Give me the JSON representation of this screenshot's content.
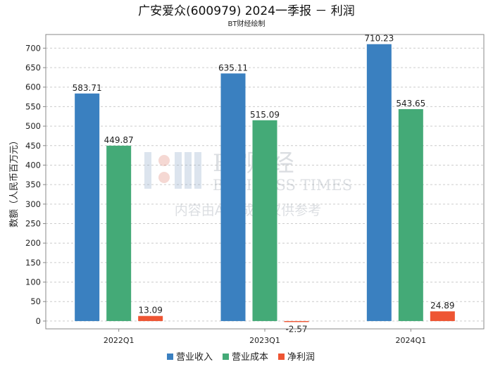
{
  "chart_data": {
    "type": "bar",
    "title": "广安爱众(600979) 2024一季报 － 利润",
    "subtitle": "BT财经绘制",
    "xlabel": "",
    "ylabel": "数额（人民币百万元）",
    "categories": [
      "2022Q1",
      "2023Q1",
      "2024Q1"
    ],
    "series": [
      {
        "name": "营业收入",
        "values": [
          583.71,
          635.11,
          710.23
        ],
        "color": "#3a80c0"
      },
      {
        "name": "营业成本",
        "values": [
          449.87,
          515.09,
          543.65
        ],
        "color": "#44aa77"
      },
      {
        "name": "净利润",
        "values": [
          13.09,
          -2.57,
          24.89
        ],
        "color": "#ee5533"
      }
    ],
    "data_labels": [
      [
        "583.71",
        "635.11",
        "710.23"
      ],
      [
        "449.87",
        "515.09",
        "543.65"
      ],
      [
        "13.09",
        "-2.57",
        "24.89"
      ]
    ],
    "ylim": [
      -20,
      735
    ],
    "yticks": [
      0,
      50,
      100,
      150,
      200,
      250,
      300,
      350,
      400,
      450,
      500,
      550,
      600,
      650,
      700
    ],
    "grid": true,
    "legend_position": "bottom-center"
  },
  "watermark": {
    "line1": "BT财经",
    "line2": "BUSINESS TIMES",
    "line3": "内容由AI生成，仅供参考"
  }
}
